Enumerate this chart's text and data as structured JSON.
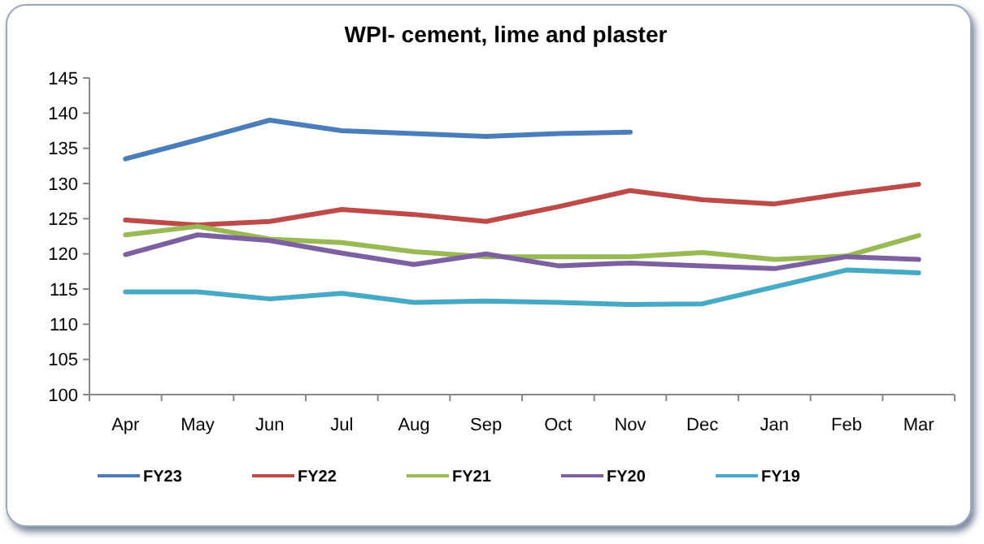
{
  "chart_data": {
    "type": "line",
    "title": "WPI- cement, lime and plaster",
    "categories": [
      "Apr",
      "May",
      "Jun",
      "Jul",
      "Aug",
      "Sep",
      "Oct",
      "Nov",
      "Dec",
      "Jan",
      "Feb",
      "Mar"
    ],
    "series": [
      {
        "name": "FY23",
        "color": "#4a7ebb",
        "values": [
          133.5,
          136.2,
          139,
          137.5,
          137.1,
          136.7,
          137.1,
          137.3,
          null,
          null,
          null,
          null
        ]
      },
      {
        "name": "FY22",
        "color": "#be4b48",
        "values": [
          124.8,
          124.1,
          124.6,
          126.3,
          125.6,
          124.6,
          126.7,
          129,
          127.7,
          127.1,
          128.6,
          129.9
        ]
      },
      {
        "name": "FY21",
        "color": "#98b954",
        "values": [
          122.7,
          123.9,
          122.1,
          121.6,
          120.3,
          119.6,
          119.6,
          119.6,
          120.2,
          119.2,
          119.7,
          122.6
        ]
      },
      {
        "name": "FY20",
        "color": "#7d60a0",
        "values": [
          119.9,
          122.7,
          121.9,
          120.1,
          118.5,
          120,
          118.3,
          118.7,
          118.3,
          117.9,
          119.6,
          119.2
        ]
      },
      {
        "name": "FY19",
        "color": "#46aac5",
        "values": [
          114.6,
          114.6,
          113.6,
          114.4,
          113.1,
          113.3,
          113.1,
          112.8,
          112.9,
          115.3,
          117.7,
          117.3
        ]
      }
    ],
    "ylim": [
      100,
      145
    ],
    "yticks": [
      100,
      105,
      110,
      115,
      120,
      125,
      130,
      135,
      140,
      145
    ],
    "grid": false,
    "legend": "bottom",
    "marker": "none",
    "line_style": "solid"
  }
}
